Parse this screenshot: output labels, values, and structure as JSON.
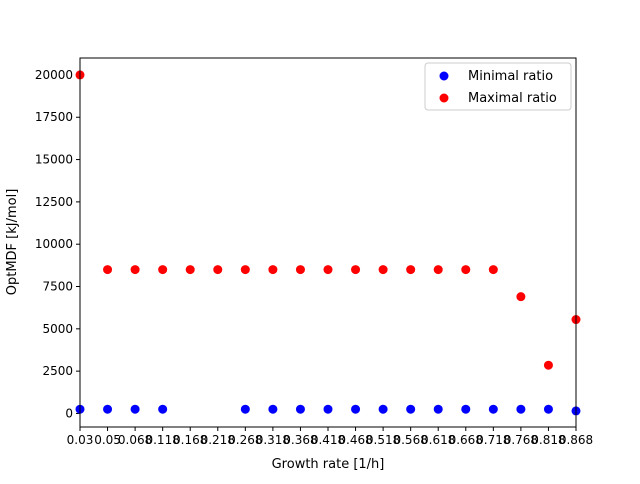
{
  "chart_data": {
    "type": "scatter",
    "title": "",
    "xlabel": "Growth rate [1/h]",
    "ylabel": "OptMDF [kJ/mol]",
    "x_tick_labels": [
      "0.03",
      "0.05",
      "0.068",
      "0.118",
      "0.168",
      "0.218",
      "0.268",
      "0.318",
      "0.368",
      "0.418",
      "0.468",
      "0.518",
      "0.568",
      "0.618",
      "0.668",
      "0.718",
      "0.768",
      "0.818",
      "0.868"
    ],
    "y_ticks": [
      0,
      2500,
      5000,
      7500,
      10000,
      12500,
      15000,
      17500,
      20000
    ],
    "ylim": [
      -800,
      21000
    ],
    "grid": false,
    "legend_position": "top-right",
    "series": [
      {
        "name": "Minimal ratio",
        "color": "#0000ff",
        "values": [
          250,
          250,
          250,
          250,
          null,
          null,
          250,
          250,
          250,
          250,
          250,
          250,
          250,
          250,
          250,
          250,
          250,
          250,
          150
        ]
      },
      {
        "name": "Maximal ratio",
        "color": "#ff0000",
        "values": [
          20000,
          8500,
          8500,
          8500,
          8500,
          8500,
          8500,
          8500,
          8500,
          8500,
          8500,
          8500,
          8500,
          8500,
          8500,
          8500,
          6900,
          2850,
          5550
        ]
      }
    ]
  }
}
